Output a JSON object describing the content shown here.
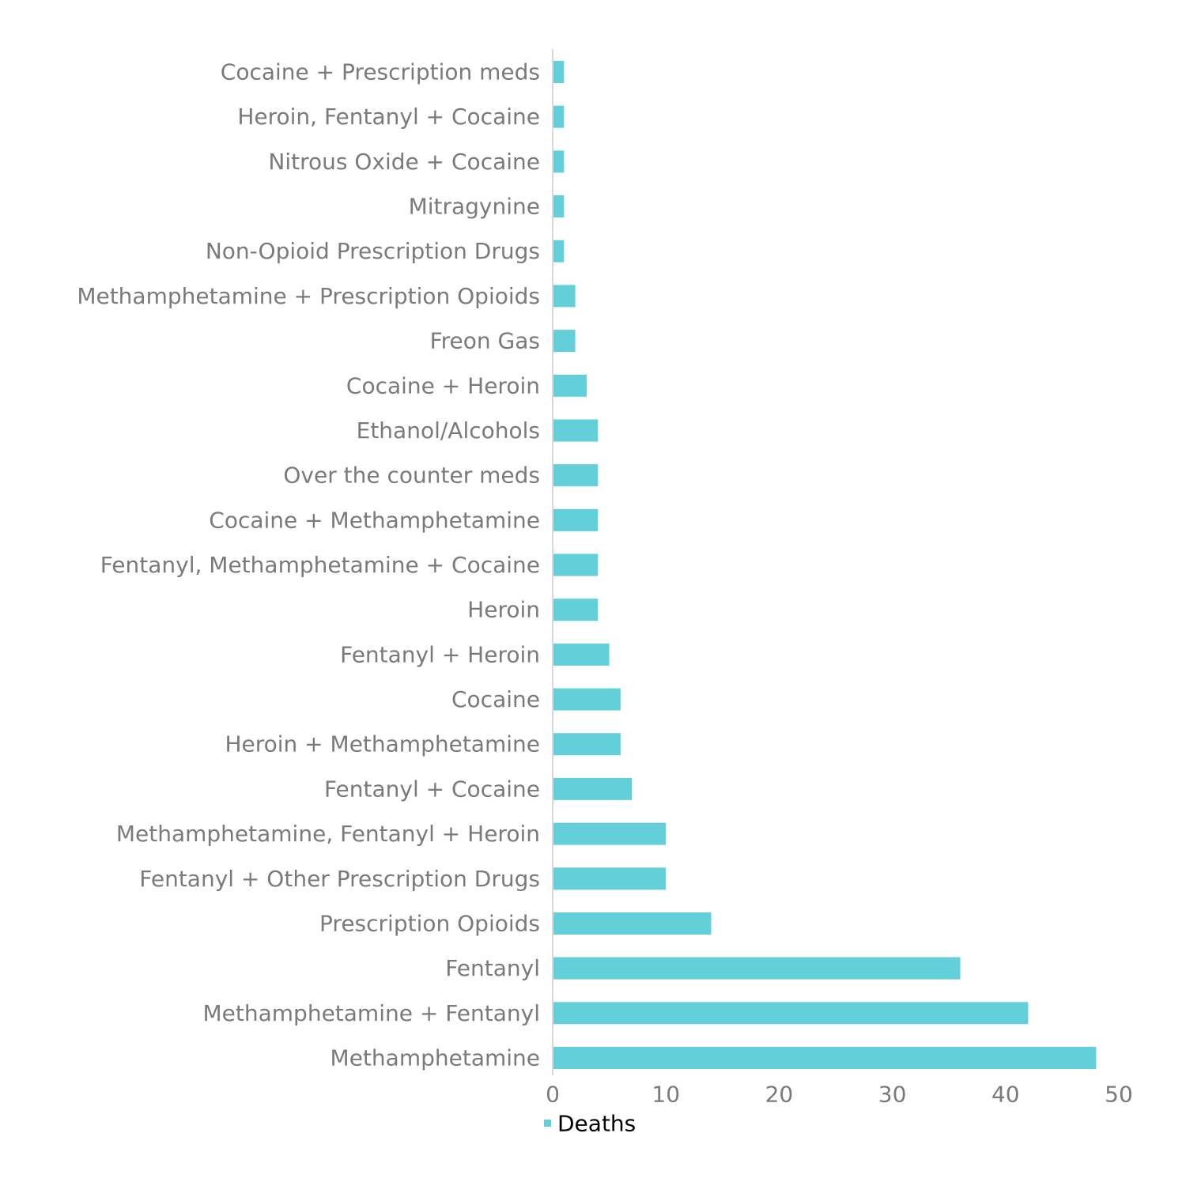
{
  "chart_data": {
    "type": "bar",
    "orientation": "horizontal",
    "categories": [
      "Methamphetamine",
      "Methamphetamine + Fentanyl",
      "Fentanyl",
      "Prescription Opioids",
      "Fentanyl + Other Prescription Drugs",
      "Methamphetamine, Fentanyl + Heroin",
      "Fentanyl + Cocaine",
      "Heroin + Methamphetamine",
      "Cocaine",
      "Fentanyl + Heroin",
      "Heroin",
      "Fentanyl, Methamphetamine + Cocaine",
      "Cocaine + Methamphetamine",
      "Over the counter meds",
      "Ethanol/Alcohols",
      "Cocaine + Heroin",
      "Freon Gas",
      "Methamphetamine + Prescription Opioids",
      "Non-Opioid Prescription Drugs",
      "Mitragynine",
      "Nitrous Oxide + Cocaine",
      "Heroin, Fentanyl + Cocaine",
      "Cocaine + Prescription meds"
    ],
    "series": [
      {
        "name": "Deaths",
        "color": "#63d0d9",
        "values": [
          48,
          42,
          36,
          14,
          10,
          10,
          7,
          6,
          6,
          5,
          4,
          4,
          4,
          4,
          4,
          3,
          2,
          2,
          1,
          1,
          1,
          1,
          1
        ]
      }
    ],
    "xlim": [
      0,
      50
    ],
    "x_ticks": [
      "0",
      "10",
      "20",
      "30",
      "40",
      "50"
    ],
    "grid": false,
    "legend": {
      "position": "bottom",
      "label": "Deaths"
    },
    "title": "",
    "xlabel": "",
    "ylabel": ""
  }
}
